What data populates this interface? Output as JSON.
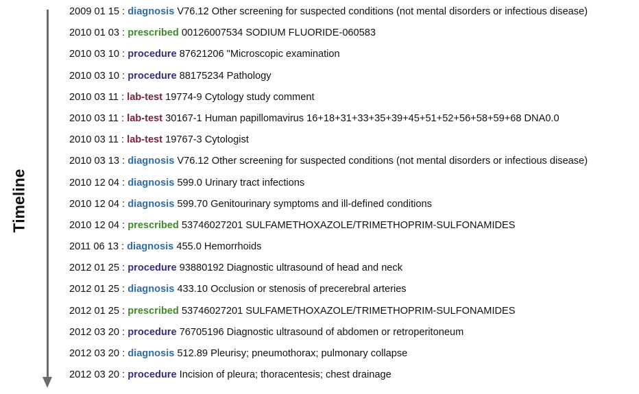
{
  "axis": {
    "label": "Timeline"
  },
  "type_colors": {
    "diagnosis": "#2f6da8",
    "prescribed": "#3f8a2a",
    "procedure": "#3c2a7e",
    "lab-test": "#7a1f3d"
  },
  "events": [
    {
      "date": "2009 01 15",
      "type": "diagnosis",
      "detail": "V76.12 Other screening for suspected conditions (not mental disorders or infectious disease)"
    },
    {
      "date": "2010 01 03",
      "type": "prescribed",
      "detail": "00126007534 SODIUM FLUORIDE-060583"
    },
    {
      "date": "2010 03 10",
      "type": "procedure",
      "detail": "87621206 \"Microscopic examination"
    },
    {
      "date": "2010 03 10",
      "type": "procedure",
      "detail": "88175234 Pathology"
    },
    {
      "date": "2010 03 11",
      "type": "lab-test",
      "detail": "19774-9 Cytology study comment"
    },
    {
      "date": "2010 03 11",
      "type": "lab-test",
      "detail": "30167-1 Human papillomavirus 16+18+31+33+35+39+45+51+52+56+58+59+68 DNA0.0"
    },
    {
      "date": "2010 03 11",
      "type": "lab-test",
      "detail": "19767-3 Cytologist"
    },
    {
      "date": "2010 03 13",
      "type": "diagnosis",
      "detail": "V76.12 Other screening for suspected conditions (not mental disorders or infectious disease)"
    },
    {
      "date": "2010 12 04",
      "type": "diagnosis",
      "detail": "599.0 Urinary tract infections"
    },
    {
      "date": "2010 12 04",
      "type": "diagnosis",
      "detail": "599.70 Genitourinary symptoms and ill-defined conditions"
    },
    {
      "date": "2010 12 04",
      "type": "prescribed",
      "detail": "53746027201 SULFAMETHOXAZOLE/TRIMETHOPRIM-SULFONAMIDES"
    },
    {
      "date": "2011 06 13",
      "type": "diagnosis",
      "detail": "455.0 Hemorrhoids"
    },
    {
      "date": "2012 01 25",
      "type": "procedure",
      "detail": "93880192 Diagnostic ultrasound of head and neck"
    },
    {
      "date": "2012 01 25",
      "type": "diagnosis",
      "detail": "433.10 Occlusion or stenosis of precerebral arteries"
    },
    {
      "date": "2012 01 25",
      "type": "prescribed",
      "detail": "53746027201 SULFAMETHOXAZOLE/TRIMETHOPRIM-SULFONAMIDES"
    },
    {
      "date": "2012 03 20",
      "type": "procedure",
      "detail": "76705196 Diagnostic ultrasound of abdomen or retroperitoneum"
    },
    {
      "date": "2012 03 20",
      "type": "diagnosis",
      "detail": "512.89 Pleurisy; pneumothorax; pulmonary collapse"
    },
    {
      "date": "2012 03 20",
      "type": "procedure",
      "detail": "Incision of pleura; thoracentesis; chest drainage"
    }
  ]
}
